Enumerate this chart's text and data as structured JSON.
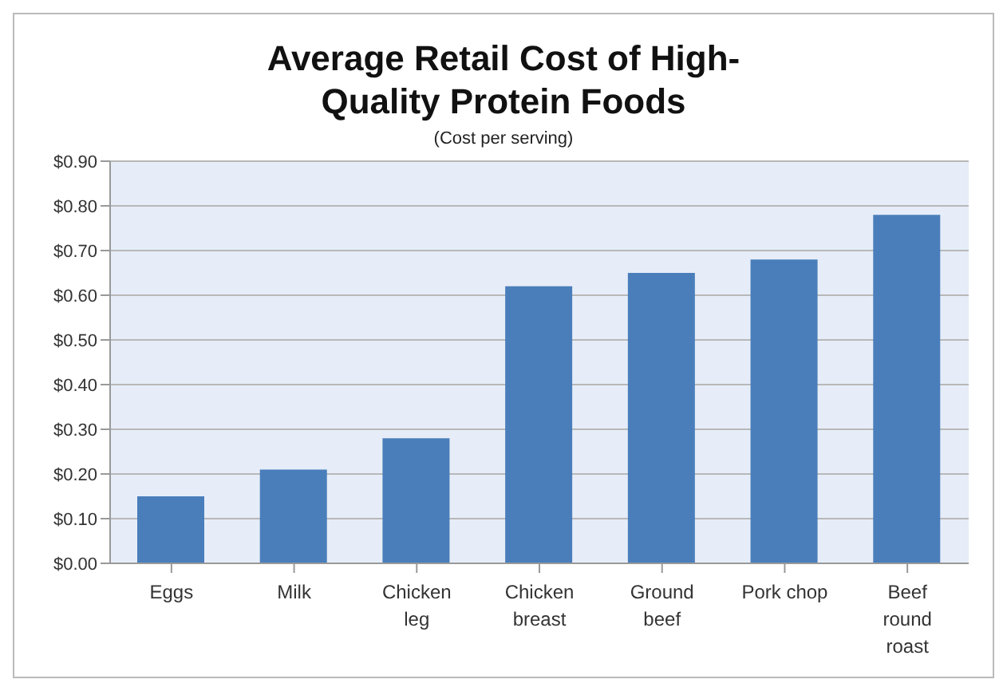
{
  "chart_data": {
    "type": "bar",
    "title": "Average Retail Cost of High-Quality Protein Foods",
    "subtitle": "(Cost per serving)",
    "categories": [
      "Eggs",
      "Milk",
      "Chicken leg",
      "Chicken breast",
      "Ground beef",
      "Pork chop",
      "Beef round roast"
    ],
    "values": [
      0.15,
      0.21,
      0.28,
      0.62,
      0.65,
      0.68,
      0.78
    ],
    "color": "#4a7ebb",
    "ylim": [
      0,
      0.9
    ],
    "yticks": [
      {
        "value": 0,
        "label": "$0.00"
      },
      {
        "value": 0.1,
        "label": "$0.10"
      },
      {
        "value": 0.2,
        "label": "$0.20"
      },
      {
        "value": 0.3,
        "label": "$0.30"
      },
      {
        "value": 0.4,
        "label": "$0.40"
      },
      {
        "value": 0.5,
        "label": "$0.50"
      },
      {
        "value": 0.6,
        "label": "$0.60"
      },
      {
        "value": 0.7,
        "label": "$0.70"
      },
      {
        "value": 0.8,
        "label": "$0.80"
      },
      {
        "value": 0.9,
        "label": "$0.90"
      }
    ],
    "grid": "y"
  }
}
